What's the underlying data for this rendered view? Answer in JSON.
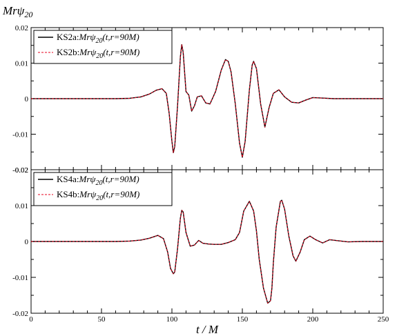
{
  "figure": {
    "ylabel_main": "Mrψ",
    "ylabel_sub": "20",
    "xlabel": "t / M"
  },
  "colors": {
    "series_a": "#000000",
    "series_b": "#e8001c",
    "axes": "#000000",
    "background": "#ffffff"
  },
  "chart_data": [
    {
      "type": "line",
      "panel": "top",
      "xlim": [
        0,
        250
      ],
      "ylim": [
        -0.02,
        0.02
      ],
      "yticks": [
        -0.02,
        -0.01,
        0,
        0.01,
        0.02
      ],
      "ytick_labels": [
        "-0.02",
        "-0.01",
        "0",
        "0.01",
        "0.02"
      ],
      "legend_position": "top-left",
      "grid": false,
      "series": [
        {
          "name": "KS2a:Mrψ20(t,r=90M)",
          "legend_prefix": "KS2a:",
          "legend_expr": "Mrψ",
          "legend_sub": "20",
          "legend_args": "(t,r=90M)",
          "style": "solid",
          "x": [
            0,
            60,
            70,
            78,
            84,
            89,
            93,
            96,
            98,
            100,
            101,
            102,
            104,
            106,
            107,
            108,
            110,
            112,
            114,
            116,
            118,
            121,
            124,
            127,
            131,
            135,
            138,
            140,
            142,
            145,
            148,
            150,
            152,
            155,
            157,
            158,
            160,
            163,
            166,
            169,
            172,
            176,
            180,
            185,
            190,
            195,
            200,
            205,
            215,
            230,
            250
          ],
          "y": [
            0,
            0,
            0.0001,
            0.0005,
            0.0013,
            0.0024,
            0.0028,
            0.0015,
            -0.004,
            -0.012,
            -0.0152,
            -0.0135,
            -0.002,
            0.0118,
            0.0152,
            0.013,
            0.002,
            0.001,
            -0.0035,
            -0.002,
            0.0005,
            0.0008,
            -0.0012,
            -0.0015,
            0.002,
            0.008,
            0.011,
            0.0105,
            0.0075,
            -0.0015,
            -0.0125,
            -0.0165,
            -0.012,
            0.0025,
            0.0095,
            0.0105,
            0.0085,
            -0.0015,
            -0.008,
            -0.0025,
            0.0015,
            0.0025,
            0.0005,
            -0.001,
            -0.0012,
            -0.0004,
            0.0003,
            0.0002,
            0,
            0,
            0
          ]
        },
        {
          "name": "KS2b:Mrψ20(t,r=90M)",
          "legend_prefix": "KS2b:",
          "legend_expr": "Mrψ",
          "legend_sub": "20",
          "legend_args": "(t,r=90M)",
          "style": "dashed",
          "x": [
            0,
            60,
            70,
            78,
            84,
            89,
            93,
            96,
            98,
            100,
            101,
            102,
            104,
            106,
            107,
            108,
            110,
            112,
            114,
            116,
            118,
            121,
            124,
            127,
            131,
            135,
            138,
            140,
            142,
            145,
            148,
            150,
            152,
            155,
            157,
            158,
            160,
            163,
            166,
            169,
            172,
            176,
            180,
            185,
            190,
            195,
            200,
            205,
            215,
            230,
            250
          ],
          "y": [
            0,
            0,
            0.0001,
            0.0005,
            0.0013,
            0.0024,
            0.0028,
            0.0015,
            -0.004,
            -0.012,
            -0.0152,
            -0.0135,
            -0.002,
            0.0118,
            0.0152,
            0.013,
            0.002,
            0.001,
            -0.0035,
            -0.002,
            0.0005,
            0.0008,
            -0.0012,
            -0.0015,
            0.002,
            0.008,
            0.011,
            0.0105,
            0.0075,
            -0.0015,
            -0.0125,
            -0.0165,
            -0.012,
            0.0025,
            0.0095,
            0.0105,
            0.0085,
            -0.0015,
            -0.008,
            -0.0025,
            0.0015,
            0.0025,
            0.0005,
            -0.001,
            -0.0012,
            -0.0004,
            0.0003,
            0.0002,
            0,
            0,
            0
          ]
        }
      ]
    },
    {
      "type": "line",
      "panel": "bottom",
      "xlim": [
        0,
        250
      ],
      "ylim": [
        -0.02,
        0.02
      ],
      "xticks": [
        0,
        50,
        100,
        150,
        200,
        250
      ],
      "xtick_labels": [
        "0",
        "50",
        "100",
        "150",
        "200",
        "250"
      ],
      "yticks": [
        -0.02,
        -0.01,
        0,
        0.01,
        0.02
      ],
      "ytick_labels": [
        "-0.02",
        "-0.01",
        "0",
        "0.01",
        "0.02"
      ],
      "legend_position": "top-left",
      "grid": false,
      "series": [
        {
          "name": "KS4a:Mrψ20(t,r=90M)",
          "legend_prefix": "KS4a:",
          "legend_expr": "Mrψ",
          "legend_sub": "20",
          "legend_args": "(t,r=90M)",
          "style": "solid",
          "x": [
            0,
            60,
            70,
            78,
            84,
            90,
            94,
            97,
            99,
            101,
            102,
            104,
            106,
            107,
            108,
            110,
            113,
            116,
            119,
            122,
            126,
            130,
            135,
            140,
            145,
            148,
            151,
            155,
            158,
            160,
            162,
            165,
            168,
            170,
            171,
            172,
            174,
            177,
            178,
            180,
            183,
            186,
            188,
            191,
            194,
            198,
            202,
            207,
            212,
            218,
            225,
            235,
            250
          ],
          "y": [
            0,
            0,
            0.0001,
            0.0004,
            0.0009,
            0.0017,
            0.0008,
            -0.003,
            -0.0075,
            -0.009,
            -0.0085,
            -0.002,
            0.0065,
            0.0087,
            0.0082,
            0.0025,
            -0.0013,
            -0.001,
            0.0003,
            -0.0005,
            -0.0007,
            -0.0008,
            -0.0008,
            -0.0003,
            0.0005,
            0.0025,
            0.0085,
            0.0112,
            0.0085,
            0.003,
            -0.005,
            -0.013,
            -0.0172,
            -0.0165,
            -0.013,
            -0.006,
            0.004,
            0.0112,
            0.0115,
            0.009,
            0.0015,
            -0.004,
            -0.0055,
            -0.003,
            0.0005,
            0.0015,
            0.0005,
            -0.0004,
            0.0005,
            0.0002,
            -0.0001,
            0,
            0
          ]
        },
        {
          "name": "KS4b:Mrψ20(t,r=90M)",
          "legend_prefix": "KS4b:",
          "legend_expr": "Mrψ",
          "legend_sub": "20",
          "legend_args": "(t,r=90M)",
          "style": "dashed",
          "x": [
            0,
            60,
            70,
            78,
            84,
            90,
            94,
            97,
            99,
            101,
            102,
            104,
            106,
            107,
            108,
            110,
            113,
            116,
            119,
            122,
            126,
            130,
            135,
            140,
            145,
            148,
            151,
            155,
            158,
            160,
            162,
            165,
            168,
            170,
            171,
            172,
            174,
            177,
            178,
            180,
            183,
            186,
            188,
            191,
            194,
            198,
            202,
            207,
            212,
            218,
            225,
            235,
            250
          ],
          "y": [
            0,
            0,
            0.0001,
            0.0004,
            0.0009,
            0.0017,
            0.0008,
            -0.003,
            -0.0075,
            -0.009,
            -0.0085,
            -0.002,
            0.0065,
            0.0087,
            0.0082,
            0.0025,
            -0.0013,
            -0.001,
            0.0003,
            -0.0005,
            -0.0007,
            -0.0008,
            -0.0008,
            -0.0003,
            0.0005,
            0.0025,
            0.0085,
            0.0112,
            0.0085,
            0.003,
            -0.005,
            -0.013,
            -0.0172,
            -0.0165,
            -0.013,
            -0.006,
            0.004,
            0.0112,
            0.0115,
            0.009,
            0.0015,
            -0.004,
            -0.0055,
            -0.003,
            0.0005,
            0.0015,
            0.0005,
            -0.0004,
            0.0005,
            0.0002,
            -0.0001,
            0,
            0
          ]
        }
      ]
    }
  ]
}
